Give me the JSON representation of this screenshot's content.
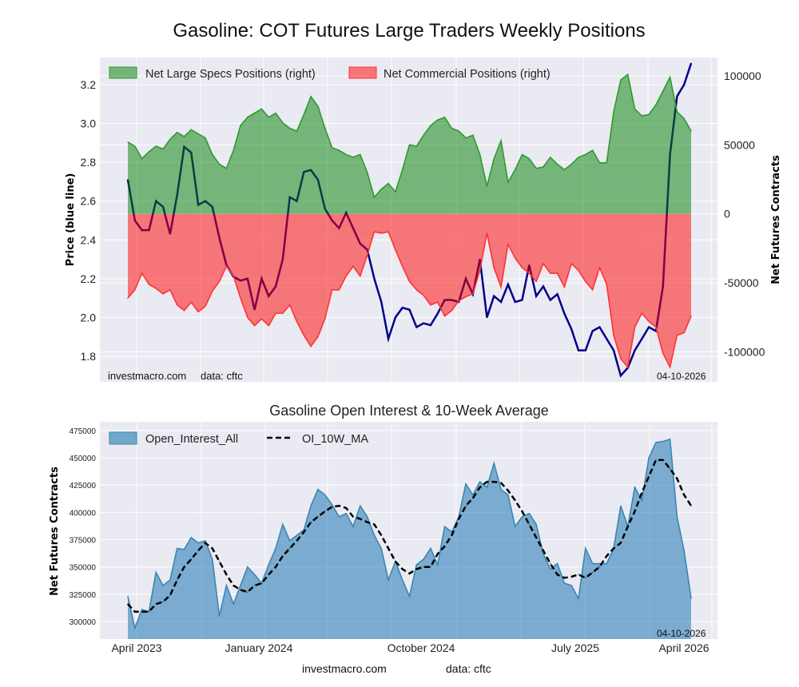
{
  "title": "Gasoline: COT Futures Large Traders Weekly Positions",
  "colors": {
    "plot_bg": "#eaeaf2",
    "grid": "#ffffff",
    "specs": "#008000",
    "commercial": "#ff0000",
    "price": "#00008b",
    "oi": "#1f77b4",
    "ma": "#000000"
  },
  "watermark": {
    "site": "investmacro.com",
    "source": "data: cftc",
    "date": "04-10-2026"
  },
  "chart_data": [
    {
      "type": "area",
      "legend_position": "top-left",
      "grid": true,
      "ylabel_left": "Price (blue line)",
      "ylabel_right": "Net Futures Contracts",
      "ylim_left": [
        1.668,
        3.34
      ],
      "ylim_right": [
        -121700,
        113300
      ],
      "yticks_left": [
        "1.8",
        "2.0",
        "2.2",
        "2.4",
        "2.6",
        "2.8",
        "3.0",
        "3.2"
      ],
      "yticks_right": [
        "-100000",
        "-50000",
        "0",
        "50000",
        "100000"
      ],
      "x": [
        "2023-03-14",
        "2023-03-28",
        "2023-04-11",
        "2023-04-25",
        "2023-05-09",
        "2023-05-23",
        "2023-06-06",
        "2023-06-20",
        "2023-07-04",
        "2023-07-18",
        "2023-08-01",
        "2023-08-15",
        "2023-08-29",
        "2023-09-12",
        "2023-09-26",
        "2023-10-10",
        "2023-10-24",
        "2023-11-07",
        "2023-11-21",
        "2023-12-05",
        "2023-12-19",
        "2024-01-02",
        "2024-01-16",
        "2024-01-30",
        "2024-02-13",
        "2024-02-27",
        "2024-03-12",
        "2024-03-26",
        "2024-04-09",
        "2024-04-23",
        "2024-05-07",
        "2024-05-21",
        "2024-06-04",
        "2024-06-18",
        "2024-07-02",
        "2024-07-16",
        "2024-07-30",
        "2024-08-13",
        "2024-08-27",
        "2024-09-10",
        "2024-09-24",
        "2024-10-08",
        "2024-10-22",
        "2024-11-05",
        "2024-11-19",
        "2024-12-03",
        "2024-12-17",
        "2024-12-31",
        "2025-01-14",
        "2025-01-28",
        "2025-02-11",
        "2025-02-25",
        "2025-03-11",
        "2025-03-25",
        "2025-04-08",
        "2025-04-22",
        "2025-05-06",
        "2025-05-20",
        "2025-06-03",
        "2025-06-17",
        "2025-07-01",
        "2025-07-15",
        "2025-07-29",
        "2025-08-12",
        "2025-08-26",
        "2025-09-09",
        "2025-09-23",
        "2025-10-07",
        "2025-10-21",
        "2025-11-04",
        "2025-11-18",
        "2025-12-02",
        "2025-12-16",
        "2025-12-30",
        "2026-01-13",
        "2026-01-27",
        "2026-02-10",
        "2026-02-24",
        "2026-03-10",
        "2026-03-24",
        "2026-04-07"
      ],
      "series": [
        {
          "name": "Net Large Specs Positions (right)",
          "axis": "right",
          "values": [
            52000,
            49000,
            40000,
            45000,
            49000,
            47000,
            54000,
            59000,
            56000,
            61000,
            58000,
            55000,
            43000,
            36000,
            33000,
            46000,
            64000,
            70000,
            73000,
            76000,
            70000,
            73000,
            66000,
            62000,
            60000,
            72000,
            85000,
            78000,
            62000,
            48000,
            46000,
            43000,
            41000,
            43000,
            30000,
            12000,
            18000,
            22000,
            16000,
            32000,
            50000,
            49000,
            57000,
            64000,
            68000,
            70000,
            62000,
            60000,
            55000,
            57000,
            43000,
            20000,
            40000,
            53000,
            23000,
            32000,
            43000,
            40000,
            33000,
            34000,
            41000,
            36000,
            32000,
            36000,
            41000,
            43000,
            46000,
            37000,
            37000,
            74000,
            97000,
            101000,
            76000,
            71000,
            72000,
            79000,
            89000,
            99000,
            74000,
            69000,
            60000
          ]
        },
        {
          "name": "Net Commercial Positions (right)",
          "axis": "right",
          "values": [
            -61000,
            -55000,
            -43000,
            -51000,
            -54000,
            -58000,
            -55000,
            -66000,
            -70000,
            -64000,
            -71000,
            -67000,
            -56000,
            -49000,
            -38000,
            -45000,
            -61000,
            -75000,
            -81000,
            -76000,
            -81000,
            -72000,
            -72000,
            -66000,
            -78000,
            -88000,
            -96000,
            -89000,
            -76000,
            -55000,
            -55000,
            -45000,
            -38000,
            -45000,
            -30000,
            -13000,
            -14000,
            -13000,
            -26000,
            -38000,
            -49000,
            -55000,
            -59000,
            -66000,
            -64000,
            -74000,
            -70000,
            -63000,
            -60000,
            -58000,
            -41000,
            -14000,
            -39000,
            -53000,
            -22000,
            -32000,
            -39000,
            -43000,
            -49000,
            -36000,
            -43000,
            -43000,
            -53000,
            -36000,
            -41000,
            -49000,
            -55000,
            -39000,
            -51000,
            -88000,
            -105000,
            -111000,
            -82000,
            -72000,
            -78000,
            -82000,
            -101000,
            -111000,
            -88000,
            -86000,
            -74000
          ]
        },
        {
          "axis": "left",
          "values": [
            2.71,
            2.5,
            2.45,
            2.45,
            2.6,
            2.57,
            2.43,
            2.63,
            2.88,
            2.85,
            2.58,
            2.6,
            2.57,
            2.41,
            2.27,
            2.21,
            2.19,
            2.2,
            2.04,
            2.2,
            2.11,
            2.16,
            2.3,
            2.62,
            2.6,
            2.75,
            2.76,
            2.71,
            2.56,
            2.5,
            2.46,
            2.54,
            2.46,
            2.38,
            2.35,
            2.2,
            2.08,
            1.89,
            2.0,
            2.05,
            2.04,
            1.95,
            1.97,
            1.96,
            2.02,
            2.09,
            2.09,
            2.08,
            2.2,
            2.12,
            2.3,
            2.0,
            2.11,
            2.08,
            2.17,
            2.08,
            2.09,
            2.27,
            2.11,
            2.16,
            2.09,
            2.12,
            2.02,
            1.94,
            1.83,
            1.83,
            1.93,
            1.95,
            1.89,
            1.83,
            1.7,
            1.74,
            1.83,
            1.89,
            1.95,
            1.93,
            2.16,
            2.84,
            3.14,
            3.2,
            3.31
          ]
        }
      ]
    },
    {
      "type": "area",
      "title": "Gasoline Open Interest & 10-Week Average",
      "ylabel": "Net Futures Contracts",
      "legend_position": "top-left",
      "grid": true,
      "ylim": [
        283900,
        483000
      ],
      "yticks": [
        "300000",
        "325000",
        "350000",
        "375000",
        "400000",
        "425000",
        "450000",
        "475000"
      ],
      "xticks": [
        "April 2023",
        "January 2024",
        "October 2024",
        "July 2025",
        "April 2026"
      ],
      "series": [
        {
          "name": "Open_Interest_All",
          "values": [
            323000,
            294000,
            311000,
            309000,
            345000,
            333000,
            338000,
            367000,
            366000,
            377000,
            372000,
            374000,
            357000,
            305000,
            333000,
            316000,
            333000,
            350000,
            343000,
            335000,
            352000,
            367000,
            389000,
            374000,
            379000,
            384000,
            406000,
            421000,
            416000,
            407000,
            396000,
            399000,
            387000,
            406000,
            396000,
            379000,
            367000,
            338000,
            355000,
            338000,
            323000,
            352000,
            357000,
            367000,
            352000,
            387000,
            382000,
            396000,
            426000,
            416000,
            428000,
            423000,
            445000,
            421000,
            416000,
            387000,
            396000,
            399000,
            389000,
            362000,
            348000,
            353000,
            335000,
            333000,
            321000,
            367000,
            353000,
            353000,
            353000,
            367000,
            406000,
            387000,
            423000,
            411000,
            450000,
            464000,
            465000,
            467000,
            396000,
            365000,
            321000
          ]
        },
        {
          "name": "OI_10W_MA",
          "values": [
            316000,
            309000,
            309000,
            309000,
            316000,
            318000,
            324000,
            338000,
            350000,
            357000,
            365000,
            372000,
            367000,
            355000,
            343000,
            333000,
            329000,
            327000,
            333000,
            335000,
            343000,
            350000,
            360000,
            367000,
            374000,
            382000,
            391000,
            396000,
            401000,
            405000,
            406000,
            404000,
            396000,
            394000,
            391000,
            389000,
            379000,
            367000,
            355000,
            348000,
            344000,
            348000,
            350000,
            350000,
            362000,
            369000,
            379000,
            394000,
            406000,
            413000,
            423000,
            428000,
            428000,
            427000,
            420000,
            411000,
            401000,
            389000,
            377000,
            365000,
            353000,
            343000,
            340000,
            341000,
            343000,
            340000,
            345000,
            350000,
            360000,
            367000,
            372000,
            387000,
            401000,
            418000,
            433000,
            448000,
            448000,
            440000,
            431000,
            416000,
            406000
          ]
        }
      ]
    }
  ]
}
